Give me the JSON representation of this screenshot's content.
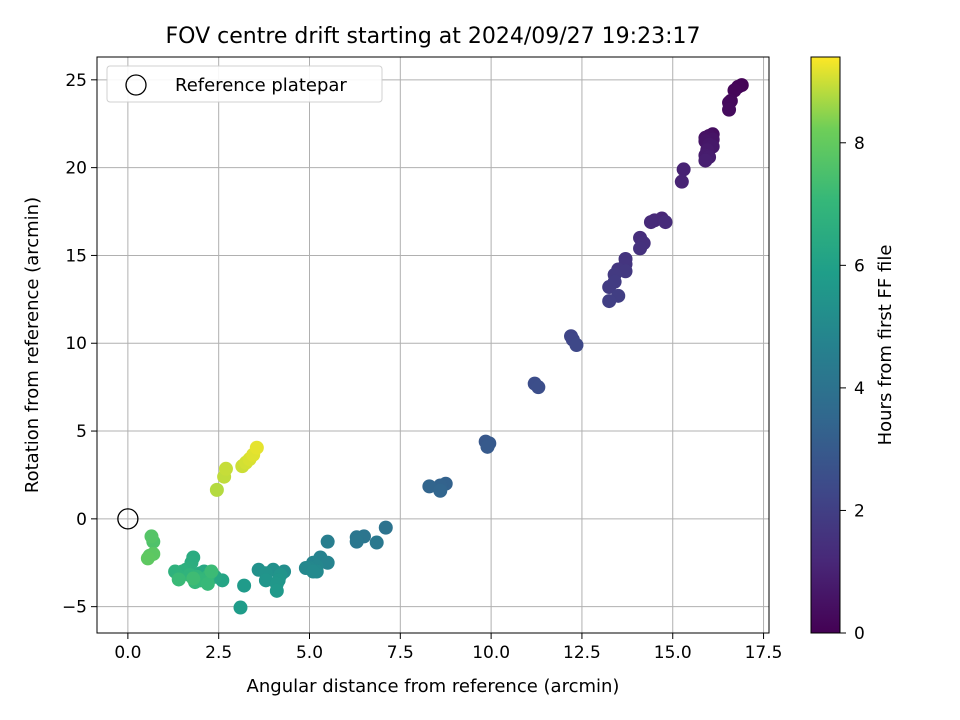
{
  "chart_data": {
    "type": "scatter",
    "title": "FOV centre drift starting at 2024/09/27 19:23:17",
    "xlabel": "Angular distance from reference (arcmin)",
    "ylabel": "Rotation from reference (arcmin)",
    "xlim": [
      -0.85,
      17.65
    ],
    "ylim": [
      -6.5,
      26.3
    ],
    "xticks": [
      0.0,
      2.5,
      5.0,
      7.5,
      10.0,
      12.5,
      15.0,
      17.5
    ],
    "xtick_labels": [
      "0.0",
      "2.5",
      "5.0",
      "7.5",
      "10.0",
      "12.5",
      "15.0",
      "17.5"
    ],
    "yticks": [
      -5,
      0,
      5,
      10,
      15,
      20,
      25
    ],
    "ytick_labels": [
      "−5",
      "0",
      "5",
      "10",
      "15",
      "20",
      "25"
    ],
    "grid": true,
    "legend": {
      "placement": "top-left",
      "label": "Reference platepar"
    },
    "reference_point": [
      0,
      0
    ],
    "colorbar": {
      "label": "Hours from first FF file",
      "colormap": "viridis",
      "range": [
        0,
        9.4
      ],
      "ticks": [
        0,
        2,
        4,
        6,
        8
      ],
      "tick_labels": [
        "0",
        "2",
        "4",
        "6",
        "8"
      ]
    },
    "points": [
      [
        16.9,
        24.7,
        0.05
      ],
      [
        16.8,
        24.6,
        0.1
      ],
      [
        16.7,
        24.4,
        0.15
      ],
      [
        16.6,
        23.8,
        0.2
      ],
      [
        16.55,
        23.7,
        0.25
      ],
      [
        16.55,
        23.3,
        0.3
      ],
      [
        16.1,
        21.9,
        0.4
      ],
      [
        16.0,
        21.8,
        0.45
      ],
      [
        15.9,
        21.7,
        0.5
      ],
      [
        16.1,
        21.6,
        0.55
      ],
      [
        15.9,
        21.5,
        0.6
      ],
      [
        16.0,
        21.3,
        0.65
      ],
      [
        16.1,
        21.2,
        0.7
      ],
      [
        15.95,
        21.0,
        0.75
      ],
      [
        15.9,
        20.7,
        0.8
      ],
      [
        16.0,
        20.6,
        0.85
      ],
      [
        15.9,
        20.4,
        0.9
      ],
      [
        15.3,
        19.9,
        1.0
      ],
      [
        15.25,
        19.2,
        1.05
      ],
      [
        14.7,
        17.1,
        1.15
      ],
      [
        14.5,
        17.0,
        1.2
      ],
      [
        14.4,
        16.9,
        1.25
      ],
      [
        14.8,
        16.9,
        1.3
      ],
      [
        14.1,
        16.0,
        1.4
      ],
      [
        14.2,
        15.7,
        1.45
      ],
      [
        14.1,
        15.4,
        1.5
      ],
      [
        13.7,
        14.8,
        1.6
      ],
      [
        13.7,
        14.5,
        1.65
      ],
      [
        13.5,
        14.2,
        1.7
      ],
      [
        13.7,
        14.1,
        1.75
      ],
      [
        13.4,
        13.9,
        1.8
      ],
      [
        13.4,
        13.5,
        1.85
      ],
      [
        13.25,
        13.2,
        1.9
      ],
      [
        13.5,
        12.7,
        1.95
      ],
      [
        13.25,
        12.4,
        2.0
      ],
      [
        12.2,
        10.4,
        2.2
      ],
      [
        12.25,
        10.2,
        2.25
      ],
      [
        12.35,
        9.9,
        2.3
      ],
      [
        11.2,
        7.7,
        2.5
      ],
      [
        11.3,
        7.5,
        2.55
      ],
      [
        9.85,
        4.4,
        2.9
      ],
      [
        9.95,
        4.3,
        2.95
      ],
      [
        9.9,
        4.1,
        3.0
      ],
      [
        8.75,
        2.0,
        3.3
      ],
      [
        8.6,
        1.9,
        3.35
      ],
      [
        8.3,
        1.85,
        3.4
      ],
      [
        8.6,
        1.6,
        3.45
      ],
      [
        7.1,
        -0.5,
        4.0
      ],
      [
        6.5,
        -1.0,
        4.1
      ],
      [
        6.3,
        -1.05,
        4.15
      ],
      [
        6.3,
        -1.3,
        4.2
      ],
      [
        6.85,
        -1.35,
        4.25
      ],
      [
        5.5,
        -1.3,
        4.5
      ],
      [
        5.3,
        -2.2,
        4.7
      ],
      [
        5.5,
        -2.5,
        4.75
      ],
      [
        5.1,
        -2.5,
        4.8
      ],
      [
        5.2,
        -2.7,
        4.85
      ],
      [
        5.0,
        -2.8,
        4.9
      ],
      [
        4.9,
        -2.8,
        4.95
      ],
      [
        5.2,
        -3.0,
        5.0
      ],
      [
        5.1,
        -3.0,
        5.05
      ],
      [
        4.3,
        -3.0,
        5.2
      ],
      [
        4.0,
        -2.9,
        5.3
      ],
      [
        3.6,
        -2.9,
        5.35
      ],
      [
        3.8,
        -3.1,
        5.4
      ],
      [
        4.2,
        -3.2,
        5.45
      ],
      [
        3.8,
        -3.5,
        5.5
      ],
      [
        4.15,
        -3.5,
        5.55
      ],
      [
        4.1,
        -3.7,
        5.6
      ],
      [
        4.1,
        -4.1,
        5.65
      ],
      [
        3.2,
        -3.8,
        5.75
      ],
      [
        3.1,
        -5.05,
        5.8
      ],
      [
        2.6,
        -3.5,
        6.2
      ],
      [
        2.4,
        -3.3,
        6.3
      ],
      [
        2.1,
        -3.0,
        6.35
      ],
      [
        2.0,
        -3.1,
        6.4
      ],
      [
        1.8,
        -2.2,
        6.5
      ],
      [
        1.75,
        -2.5,
        6.55
      ],
      [
        1.7,
        -2.8,
        6.6
      ],
      [
        1.6,
        -2.9,
        6.65
      ],
      [
        1.5,
        -3.0,
        6.7
      ],
      [
        1.3,
        -3.0,
        6.75
      ],
      [
        1.4,
        -3.3,
        6.8
      ],
      [
        1.7,
        -3.2,
        6.85
      ],
      [
        1.9,
        -3.3,
        6.9
      ],
      [
        2.2,
        -3.3,
        6.95
      ],
      [
        2.0,
        -3.5,
        7.0
      ],
      [
        1.85,
        -3.6,
        7.05
      ],
      [
        2.2,
        -3.7,
        7.1
      ],
      [
        1.4,
        -3.45,
        7.15
      ],
      [
        2.3,
        -3.0,
        7.2
      ],
      [
        1.8,
        -3.4,
        7.25
      ],
      [
        0.7,
        -1.3,
        7.6
      ],
      [
        0.65,
        -1.0,
        7.7
      ],
      [
        0.6,
        -2.1,
        7.8
      ],
      [
        0.7,
        -2.0,
        7.85
      ],
      [
        0.55,
        -2.25,
        7.9
      ],
      [
        2.45,
        1.65,
        8.8
      ],
      [
        2.65,
        2.4,
        8.9
      ],
      [
        2.7,
        2.85,
        8.95
      ],
      [
        3.15,
        3.0,
        9.0
      ],
      [
        3.25,
        3.2,
        9.05
      ],
      [
        3.35,
        3.4,
        9.1
      ],
      [
        3.45,
        3.65,
        9.15
      ],
      [
        3.55,
        4.05,
        9.2
      ]
    ]
  }
}
